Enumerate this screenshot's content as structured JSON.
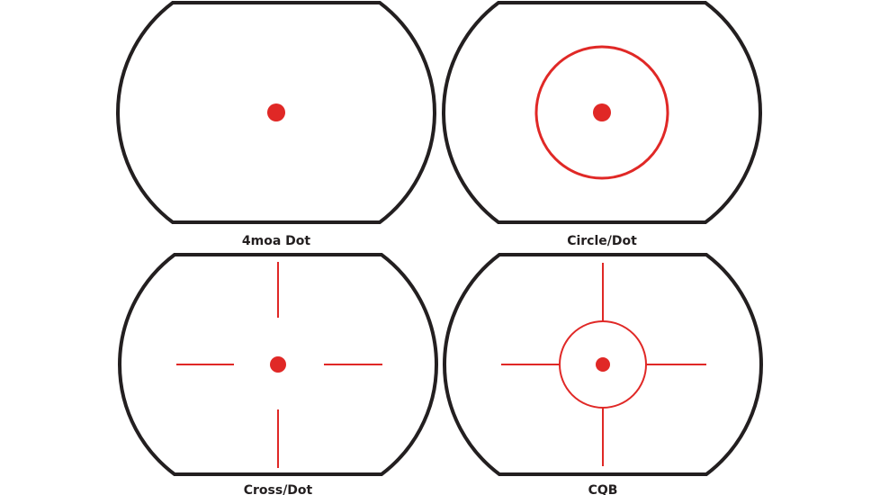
{
  "colors": {
    "frame": "#231f20",
    "reticle": "#e02826",
    "background": "#ffffff"
  },
  "reticles": [
    {
      "label": "4moa Dot",
      "type": "dot"
    },
    {
      "label": "Circle/Dot",
      "type": "circle-dot"
    },
    {
      "label": "Cross/Dot",
      "type": "cross-dot"
    },
    {
      "label": "CQB",
      "type": "cqb"
    }
  ]
}
